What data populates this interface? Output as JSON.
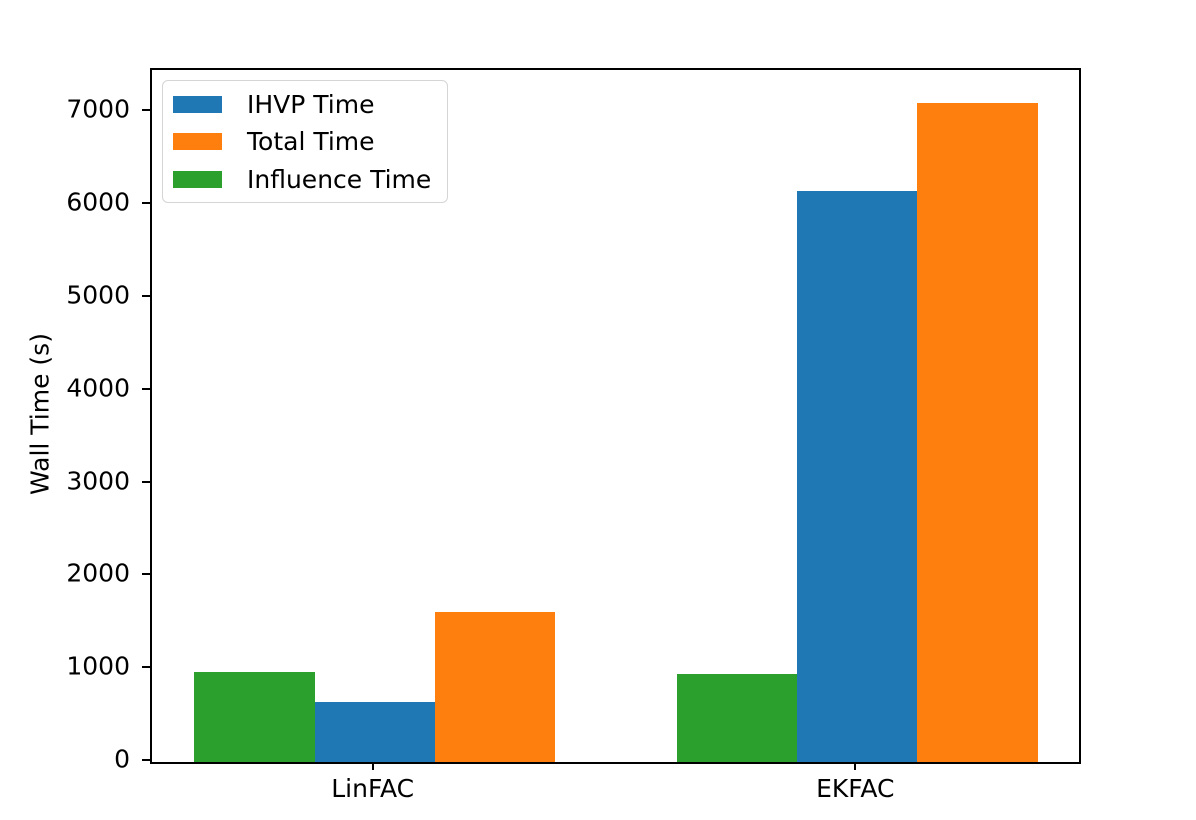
{
  "chart_data": {
    "type": "bar",
    "title": "",
    "xlabel": "",
    "ylabel": "Wall Time (s)",
    "categories": [
      "LinFAC",
      "EKFAC"
    ],
    "series": [
      {
        "name": "IHVP Time",
        "color": "#1f77b4",
        "values": [
          650,
          6150
        ]
      },
      {
        "name": "Total Time",
        "color": "#ff7f0e",
        "values": [
          1620,
          7100
        ]
      },
      {
        "name": "Influence Time",
        "color": "#2ca02c",
        "values": [
          970,
          950
        ]
      }
    ],
    "bar_draw_order": [
      "Influence Time",
      "IHVP Time",
      "Total Time"
    ],
    "ylim": [
      0,
      7455
    ],
    "yticks": [
      0,
      1000,
      2000,
      3000,
      4000,
      5000,
      6000,
      7000
    ],
    "legend_position": "upper left",
    "grid": false,
    "colors": {
      "axis": "#000000",
      "background": "#ffffff",
      "legend_border": "#d5d5d5"
    }
  }
}
